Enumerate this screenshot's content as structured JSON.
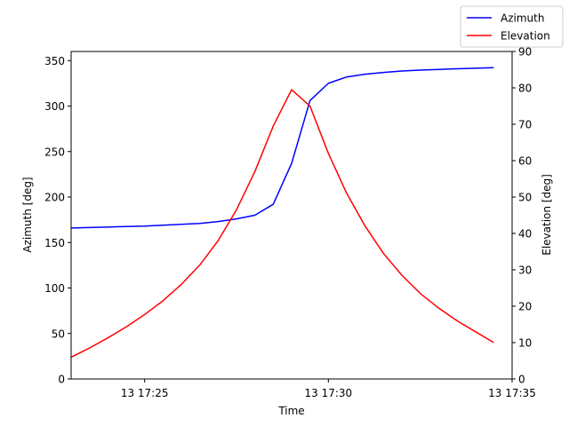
{
  "chart_data": {
    "type": "line",
    "title": "",
    "xlabel": "Time",
    "ylabel_left": "Azimuth [deg]",
    "ylabel_right": "Elevation [deg]",
    "xlim": [
      "13 17:23:00",
      "13 17:35:00"
    ],
    "ylim_left": [
      0,
      360
    ],
    "ylim_right": [
      0,
      90
    ],
    "xticks": [
      {
        "t": "13 17:25:00",
        "label": "13 17:25"
      },
      {
        "t": "13 17:30:00",
        "label": "13 17:30"
      },
      {
        "t": "13 17:35:00",
        "label": "13 17:35"
      }
    ],
    "yticks_left": [
      0,
      50,
      100,
      150,
      200,
      250,
      300,
      350
    ],
    "yticks_right": [
      0,
      10,
      20,
      30,
      40,
      50,
      60,
      70,
      80,
      90
    ],
    "grid": false,
    "legend": "top-right",
    "times": [
      "13 17:23:00",
      "13 17:23:30",
      "13 17:24:00",
      "13 17:24:30",
      "13 17:25:00",
      "13 17:25:30",
      "13 17:26:00",
      "13 17:26:30",
      "13 17:27:00",
      "13 17:27:30",
      "13 17:28:00",
      "13 17:28:30",
      "13 17:29:00",
      "13 17:29:30",
      "13 17:30:00",
      "13 17:30:30",
      "13 17:31:00",
      "13 17:31:30",
      "13 17:32:00",
      "13 17:32:30",
      "13 17:33:00",
      "13 17:33:30",
      "13 17:34:00",
      "13 17:34:30"
    ],
    "series": [
      {
        "name": "Azimuth",
        "axis": "left",
        "color": "#0000ff",
        "values": [
          166,
          166.5,
          167,
          167.5,
          168,
          169,
          170,
          171,
          173,
          176,
          180,
          192,
          237,
          306,
          325,
          332,
          335,
          337,
          338.5,
          339.5,
          340.3,
          341,
          341.6,
          342.2
        ]
      },
      {
        "name": "Elevation",
        "axis": "right",
        "color": "#ff0000",
        "values": [
          6,
          8.5,
          11.3,
          14.3,
          17.7,
          21.5,
          26,
          31.3,
          38,
          46.5,
          57,
          69.5,
          79.5,
          75,
          62,
          51,
          42,
          34.5,
          28.5,
          23.5,
          19.5,
          16,
          13,
          10
        ]
      }
    ]
  }
}
